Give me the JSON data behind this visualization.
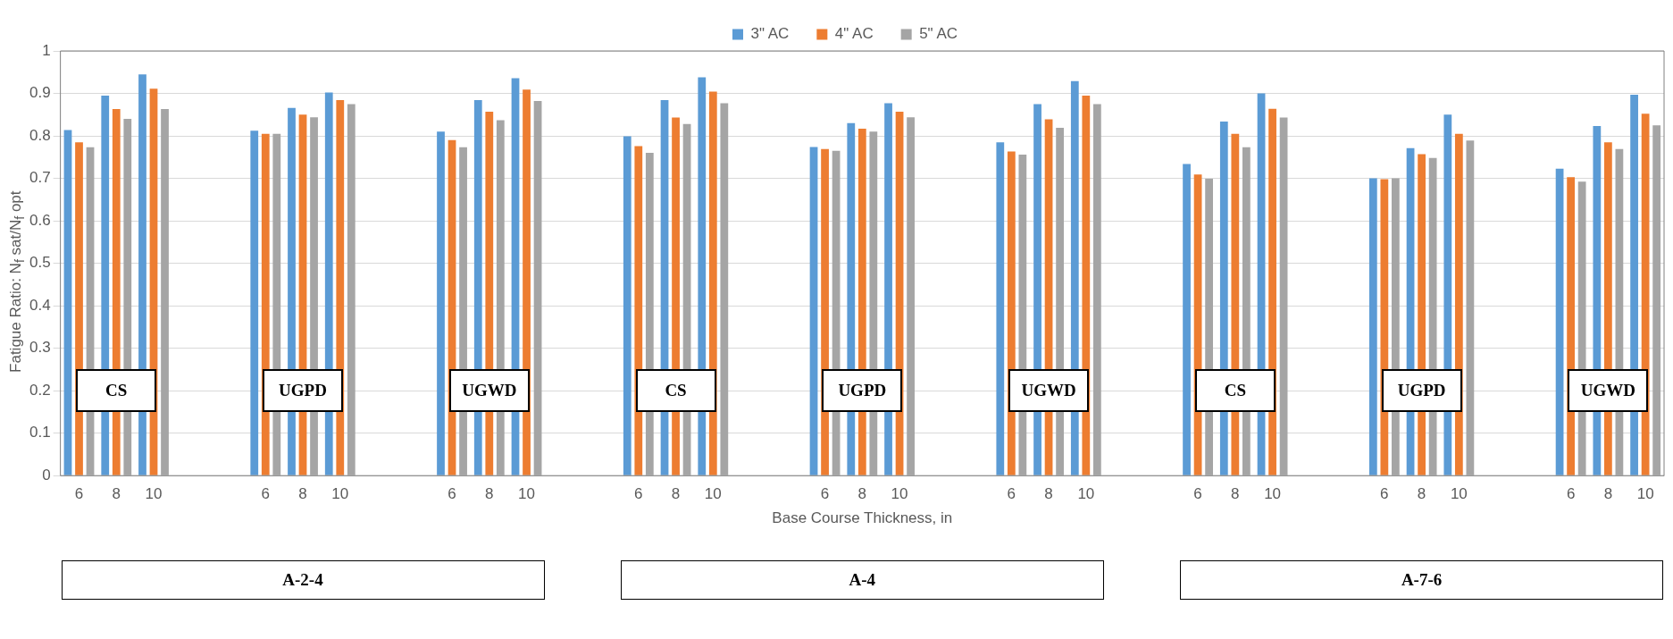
{
  "chart_data": {
    "type": "bar",
    "xlabel": "Base Course Thickness, in",
    "ylabel": "Fatigue Ratio: N$_{f}$ sat/N$_{f}$ opt",
    "categories": [
      "6",
      "8",
      "10",
      null,
      null,
      "6",
      "8",
      "10",
      null,
      null,
      "6",
      "8",
      "10",
      null,
      null,
      "6",
      "8",
      "10",
      null,
      null,
      "6",
      "8",
      "10",
      null,
      null,
      "6",
      "8",
      "10",
      null,
      null,
      "6",
      "8",
      "10",
      null,
      null,
      "6",
      "8",
      "10",
      null,
      null,
      "6",
      "8",
      "10"
    ],
    "series": [
      {
        "name": "3\" AC",
        "color": "#5b9bd5",
        "values": [
          0.814,
          0.895,
          0.945,
          null,
          null,
          0.812,
          0.866,
          0.902,
          null,
          null,
          0.81,
          0.884,
          0.936,
          null,
          null,
          0.799,
          0.884,
          0.938,
          null,
          null,
          0.774,
          0.83,
          0.877,
          null,
          null,
          0.785,
          0.875,
          0.929,
          null,
          null,
          0.734,
          0.834,
          0.9,
          null,
          null,
          0.7,
          0.771,
          0.85,
          null,
          null,
          0.723,
          0.823,
          0.897
        ]
      },
      {
        "name": "4\" AC",
        "color": "#ed7d31",
        "values": [
          0.785,
          0.863,
          0.911,
          null,
          null,
          0.805,
          0.85,
          0.884,
          null,
          null,
          0.79,
          0.857,
          0.909,
          null,
          null,
          0.776,
          0.843,
          0.904,
          null,
          null,
          0.769,
          0.817,
          0.857,
          null,
          null,
          0.763,
          0.839,
          0.895,
          null,
          null,
          0.709,
          0.805,
          0.864,
          null,
          null,
          0.698,
          0.757,
          0.805,
          null,
          null,
          0.703,
          0.785,
          0.852
        ]
      },
      {
        "name": "5\" AC",
        "color": "#a5a5a5",
        "values": [
          0.773,
          0.84,
          0.863,
          null,
          null,
          0.805,
          0.844,
          0.875,
          null,
          null,
          0.773,
          0.837,
          0.882,
          null,
          null,
          0.76,
          0.828,
          0.877,
          null,
          null,
          0.765,
          0.81,
          0.844,
          null,
          null,
          0.756,
          0.819,
          0.875,
          null,
          null,
          0.699,
          0.773,
          0.843,
          null,
          null,
          0.7,
          0.748,
          0.789,
          null,
          null,
          0.692,
          0.769,
          0.825
        ]
      }
    ],
    "ylim": [
      0,
      1
    ],
    "yticks": [
      0,
      0.1,
      0.2,
      0.3,
      0.4,
      0.5,
      0.6,
      0.7,
      0.8,
      0.9,
      1
    ],
    "grid": "y",
    "legend": "top",
    "annotations": [
      "CS",
      "UGPD",
      "UGWD",
      "CS",
      "UGPD",
      "UGWD",
      "CS",
      "UGPD",
      "UGWD",
      "A-2-4",
      "A-4",
      "A-7-6"
    ]
  }
}
